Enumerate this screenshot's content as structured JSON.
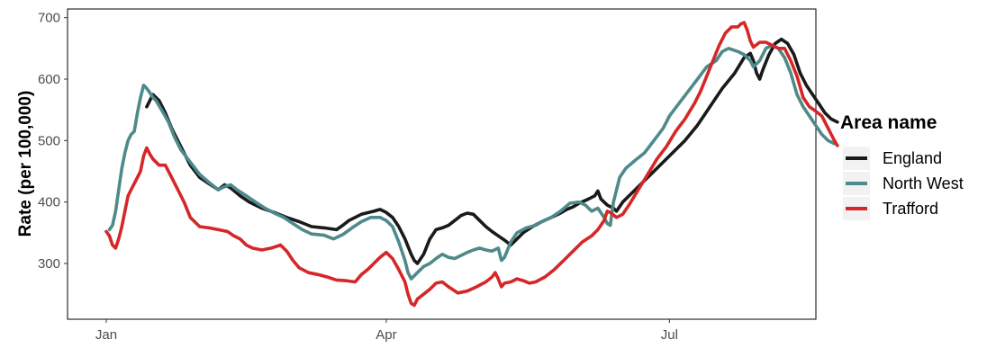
{
  "chart_data": {
    "type": "line",
    "title": "",
    "xlabel": "",
    "ylabel": "Rate (per 100,000)",
    "x_tick_labels": [
      "Jan",
      "Apr",
      "Jul"
    ],
    "x_tick_days": [
      0,
      90,
      181
    ],
    "ylim": [
      210,
      710
    ],
    "y_ticks": [
      300,
      400,
      500,
      600,
      700
    ],
    "y_tick_labels": [
      "300",
      "400",
      "500",
      "600",
      "700"
    ],
    "grid": false,
    "legend_position": "right",
    "legend": {
      "title": "Area name"
    },
    "x_unit": "days since Jan 1",
    "series": [
      {
        "name": "England",
        "color": "#1a1a1a",
        "points": [
          [
            13,
            555
          ],
          [
            15,
            575
          ],
          [
            17,
            565
          ],
          [
            19,
            545
          ],
          [
            21,
            520
          ],
          [
            24,
            490
          ],
          [
            27,
            460
          ],
          [
            30,
            440
          ],
          [
            33,
            430
          ],
          [
            36,
            420
          ],
          [
            38,
            428
          ],
          [
            40,
            423
          ],
          [
            43,
            410
          ],
          [
            46,
            400
          ],
          [
            50,
            390
          ],
          [
            54,
            383
          ],
          [
            58,
            375
          ],
          [
            62,
            368
          ],
          [
            66,
            360
          ],
          [
            70,
            358
          ],
          [
            74,
            355
          ],
          [
            76,
            362
          ],
          [
            78,
            370
          ],
          [
            82,
            380
          ],
          [
            86,
            385
          ],
          [
            88,
            388
          ],
          [
            90,
            383
          ],
          [
            92,
            375
          ],
          [
            94,
            360
          ],
          [
            96,
            340
          ],
          [
            98,
            315
          ],
          [
            99,
            305
          ],
          [
            100,
            300
          ],
          [
            102,
            315
          ],
          [
            104,
            340
          ],
          [
            106,
            355
          ],
          [
            108,
            358
          ],
          [
            110,
            362
          ],
          [
            112,
            370
          ],
          [
            114,
            378
          ],
          [
            116,
            382
          ],
          [
            118,
            380
          ],
          [
            120,
            370
          ],
          [
            122,
            360
          ],
          [
            124,
            352
          ],
          [
            126,
            345
          ],
          [
            128,
            338
          ],
          [
            130,
            330
          ],
          [
            132,
            340
          ],
          [
            134,
            350
          ],
          [
            137,
            360
          ],
          [
            140,
            368
          ],
          [
            143,
            375
          ],
          [
            146,
            382
          ],
          [
            148,
            388
          ],
          [
            150,
            392
          ],
          [
            152,
            398
          ],
          [
            155,
            405
          ],
          [
            157,
            410
          ],
          [
            158,
            418
          ],
          [
            159,
            405
          ],
          [
            161,
            395
          ],
          [
            163,
            390
          ],
          [
            164,
            385
          ],
          [
            166,
            400
          ],
          [
            170,
            420
          ],
          [
            174,
            440
          ],
          [
            178,
            460
          ],
          [
            182,
            480
          ],
          [
            186,
            500
          ],
          [
            190,
            525
          ],
          [
            194,
            555
          ],
          [
            198,
            585
          ],
          [
            202,
            610
          ],
          [
            205,
            635
          ],
          [
            207,
            642
          ],
          [
            208,
            630
          ],
          [
            209,
            610
          ],
          [
            210,
            600
          ],
          [
            211,
            615
          ],
          [
            213,
            640
          ],
          [
            215,
            658
          ],
          [
            217,
            665
          ],
          [
            219,
            658
          ],
          [
            221,
            640
          ],
          [
            223,
            610
          ],
          [
            225,
            590
          ],
          [
            227,
            575
          ],
          [
            229,
            560
          ],
          [
            231,
            545
          ],
          [
            233,
            535
          ],
          [
            235,
            530
          ]
        ]
      },
      {
        "name": "North West",
        "color": "#4f8a8b",
        "points": [
          [
            1,
            355
          ],
          [
            2,
            362
          ],
          [
            3,
            385
          ],
          [
            4,
            420
          ],
          [
            5,
            455
          ],
          [
            6,
            480
          ],
          [
            7,
            500
          ],
          [
            8,
            510
          ],
          [
            9,
            515
          ],
          [
            10,
            545
          ],
          [
            11,
            570
          ],
          [
            12,
            590
          ],
          [
            13,
            585
          ],
          [
            14,
            578
          ],
          [
            15,
            570
          ],
          [
            16,
            565
          ],
          [
            18,
            548
          ],
          [
            20,
            530
          ],
          [
            22,
            505
          ],
          [
            24,
            485
          ],
          [
            27,
            465
          ],
          [
            30,
            445
          ],
          [
            33,
            432
          ],
          [
            36,
            420
          ],
          [
            38,
            425
          ],
          [
            40,
            428
          ],
          [
            42,
            420
          ],
          [
            45,
            410
          ],
          [
            48,
            400
          ],
          [
            51,
            390
          ],
          [
            54,
            382
          ],
          [
            57,
            375
          ],
          [
            60,
            365
          ],
          [
            63,
            355
          ],
          [
            66,
            348
          ],
          [
            70,
            346
          ],
          [
            73,
            340
          ],
          [
            76,
            347
          ],
          [
            79,
            358
          ],
          [
            82,
            368
          ],
          [
            85,
            375
          ],
          [
            88,
            375
          ],
          [
            90,
            370
          ],
          [
            92,
            360
          ],
          [
            94,
            335
          ],
          [
            96,
            305
          ],
          [
            97,
            285
          ],
          [
            98,
            275
          ],
          [
            100,
            285
          ],
          [
            102,
            295
          ],
          [
            104,
            300
          ],
          [
            106,
            308
          ],
          [
            108,
            315
          ],
          [
            110,
            310
          ],
          [
            112,
            308
          ],
          [
            114,
            313
          ],
          [
            116,
            318
          ],
          [
            118,
            322
          ],
          [
            120,
            325
          ],
          [
            122,
            322
          ],
          [
            124,
            320
          ],
          [
            126,
            325
          ],
          [
            127,
            305
          ],
          [
            128,
            310
          ],
          [
            130,
            335
          ],
          [
            132,
            350
          ],
          [
            135,
            358
          ],
          [
            138,
            362
          ],
          [
            140,
            368
          ],
          [
            143,
            375
          ],
          [
            146,
            385
          ],
          [
            149,
            398
          ],
          [
            152,
            400
          ],
          [
            154,
            395
          ],
          [
            156,
            385
          ],
          [
            158,
            390
          ],
          [
            160,
            375
          ],
          [
            161,
            365
          ],
          [
            162,
            362
          ],
          [
            163,
            400
          ],
          [
            165,
            440
          ],
          [
            167,
            455
          ],
          [
            170,
            468
          ],
          [
            173,
            480
          ],
          [
            176,
            500
          ],
          [
            179,
            520
          ],
          [
            181,
            540
          ],
          [
            184,
            560
          ],
          [
            187,
            580
          ],
          [
            190,
            600
          ],
          [
            193,
            620
          ],
          [
            196,
            630
          ],
          [
            198,
            645
          ],
          [
            200,
            650
          ],
          [
            203,
            645
          ],
          [
            205,
            640
          ],
          [
            207,
            630
          ],
          [
            208,
            620
          ],
          [
            210,
            630
          ],
          [
            212,
            650
          ],
          [
            214,
            655
          ],
          [
            216,
            650
          ],
          [
            218,
            635
          ],
          [
            220,
            610
          ],
          [
            222,
            575
          ],
          [
            224,
            555
          ],
          [
            226,
            540
          ],
          [
            228,
            525
          ],
          [
            230,
            510
          ],
          [
            232,
            500
          ],
          [
            234,
            495
          ]
        ]
      },
      {
        "name": "Trafford",
        "color": "#d62728",
        "points": [
          [
            0,
            352
          ],
          [
            1,
            345
          ],
          [
            2,
            330
          ],
          [
            3,
            325
          ],
          [
            4,
            340
          ],
          [
            5,
            360
          ],
          [
            6,
            385
          ],
          [
            7,
            410
          ],
          [
            8,
            420
          ],
          [
            9,
            430
          ],
          [
            10,
            440
          ],
          [
            11,
            450
          ],
          [
            12,
            475
          ],
          [
            13,
            488
          ],
          [
            14,
            478
          ],
          [
            15,
            470
          ],
          [
            17,
            460
          ],
          [
            19,
            460
          ],
          [
            21,
            440
          ],
          [
            23,
            420
          ],
          [
            25,
            400
          ],
          [
            27,
            375
          ],
          [
            30,
            360
          ],
          [
            33,
            358
          ],
          [
            36,
            355
          ],
          [
            39,
            352
          ],
          [
            41,
            345
          ],
          [
            43,
            340
          ],
          [
            45,
            330
          ],
          [
            47,
            325
          ],
          [
            50,
            322
          ],
          [
            53,
            325
          ],
          [
            56,
            330
          ],
          [
            58,
            320
          ],
          [
            60,
            305
          ],
          [
            62,
            293
          ],
          [
            65,
            285
          ],
          [
            68,
            282
          ],
          [
            71,
            278
          ],
          [
            74,
            273
          ],
          [
            77,
            272
          ],
          [
            80,
            270
          ],
          [
            82,
            282
          ],
          [
            84,
            290
          ],
          [
            86,
            300
          ],
          [
            88,
            310
          ],
          [
            90,
            318
          ],
          [
            92,
            308
          ],
          [
            94,
            290
          ],
          [
            96,
            270
          ],
          [
            97,
            250
          ],
          [
            98,
            235
          ],
          [
            99,
            232
          ],
          [
            100,
            242
          ],
          [
            102,
            250
          ],
          [
            104,
            258
          ],
          [
            106,
            268
          ],
          [
            108,
            270
          ],
          [
            110,
            262
          ],
          [
            113,
            252
          ],
          [
            116,
            255
          ],
          [
            119,
            262
          ],
          [
            122,
            270
          ],
          [
            124,
            278
          ],
          [
            125,
            285
          ],
          [
            126,
            275
          ],
          [
            127,
            262
          ],
          [
            128,
            268
          ],
          [
            130,
            270
          ],
          [
            132,
            275
          ],
          [
            134,
            272
          ],
          [
            136,
            268
          ],
          [
            138,
            270
          ],
          [
            141,
            278
          ],
          [
            144,
            290
          ],
          [
            147,
            305
          ],
          [
            150,
            320
          ],
          [
            153,
            335
          ],
          [
            156,
            345
          ],
          [
            158,
            355
          ],
          [
            160,
            370
          ],
          [
            161,
            385
          ],
          [
            162,
            383
          ],
          [
            164,
            375
          ],
          [
            166,
            380
          ],
          [
            168,
            395
          ],
          [
            171,
            420
          ],
          [
            174,
            445
          ],
          [
            177,
            470
          ],
          [
            180,
            490
          ],
          [
            183,
            515
          ],
          [
            186,
            535
          ],
          [
            189,
            560
          ],
          [
            191,
            580
          ],
          [
            193,
            605
          ],
          [
            195,
            630
          ],
          [
            197,
            655
          ],
          [
            199,
            675
          ],
          [
            201,
            685
          ],
          [
            203,
            685
          ],
          [
            204,
            690
          ],
          [
            205,
            692
          ],
          [
            206,
            680
          ],
          [
            207,
            662
          ],
          [
            208,
            652
          ],
          [
            210,
            660
          ],
          [
            212,
            660
          ],
          [
            214,
            655
          ],
          [
            216,
            650
          ],
          [
            218,
            650
          ],
          [
            220,
            630
          ],
          [
            222,
            605
          ],
          [
            224,
            570
          ],
          [
            226,
            555
          ],
          [
            228,
            548
          ],
          [
            230,
            540
          ],
          [
            232,
            520
          ],
          [
            234,
            500
          ],
          [
            235,
            492
          ]
        ]
      }
    ]
  }
}
